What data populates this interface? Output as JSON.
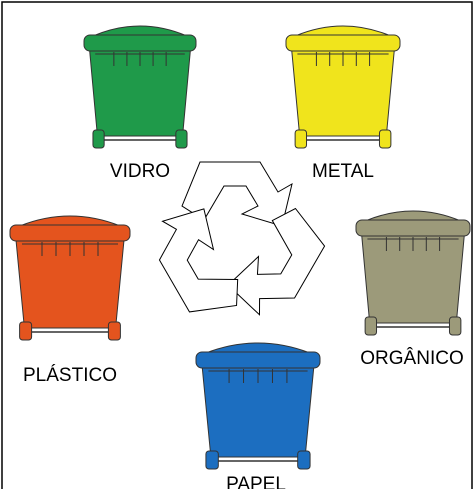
{
  "bins": [
    {
      "label": "VIDRO",
      "color": "#1f9a4a"
    },
    {
      "label": "METAL",
      "color": "#f0e41c"
    },
    {
      "label": "PLÁSTICO",
      "color": "#e4541e"
    },
    {
      "label": "ORGÂNICO",
      "color": "#9c9a7a"
    },
    {
      "label": "PAPEL",
      "color": "#1c6ec0"
    }
  ]
}
